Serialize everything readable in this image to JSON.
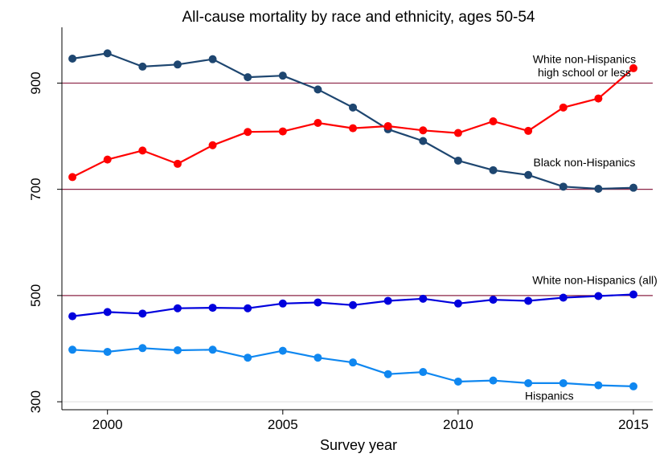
{
  "chart_data": {
    "type": "line",
    "title": "All-cause mortality by race and ethnicity, ages 50-54",
    "xlabel": "Survey year",
    "ylabel": "",
    "xlim": [
      1998.7,
      2015.55
    ],
    "ylim": [
      285,
      1005
    ],
    "x_ticks": [
      2000,
      2005,
      2010,
      2015
    ],
    "y_ticks": [
      300,
      500,
      700,
      900
    ],
    "reference_lines": [
      {
        "y": 300,
        "color": "#e0e0e0"
      },
      {
        "y": 500,
        "color": "#8b2346"
      },
      {
        "y": 700,
        "color": "#8b2346"
      },
      {
        "y": 900,
        "color": "#8b2346"
      }
    ],
    "x": [
      1999,
      2000,
      2001,
      2002,
      2003,
      2004,
      2005,
      2006,
      2007,
      2008,
      2009,
      2010,
      2011,
      2012,
      2013,
      2014,
      2015
    ],
    "series": [
      {
        "key": "black",
        "color": "#1e4670",
        "values": [
          946,
          956,
          931,
          935,
          945,
          911,
          914,
          888,
          854,
          813,
          791,
          754,
          736,
          727,
          705,
          701,
          703
        ]
      },
      {
        "key": "white_hs",
        "color": "#ff0000",
        "values": [
          723,
          756,
          773,
          748,
          783,
          808,
          809,
          825,
          815,
          819,
          811,
          806,
          828,
          810,
          854,
          871,
          928
        ]
      },
      {
        "key": "white_all",
        "color": "#0000dd",
        "values": [
          461,
          469,
          466,
          476,
          477,
          476,
          485,
          487,
          482,
          490,
          494,
          485,
          492,
          490,
          496,
          499,
          502
        ]
      },
      {
        "key": "hispanic",
        "color": "#0f87f0",
        "values": [
          398,
          394,
          401,
          397,
          398,
          383,
          396,
          383,
          374,
          352,
          356,
          338,
          340,
          335,
          335,
          331,
          329
        ]
      }
    ],
    "annotations": [
      {
        "key": "a_white_hs_1",
        "text": "White non-Hispanics",
        "x": 2013.6,
        "y": 938
      },
      {
        "key": "a_white_hs_2",
        "text": "high school or less",
        "x": 2013.6,
        "y": 913
      },
      {
        "key": "a_black",
        "text": "Black non-Hispanics",
        "x": 2013.6,
        "y": 743
      },
      {
        "key": "a_white_all",
        "text": "White non-Hispanics (all)",
        "x": 2013.9,
        "y": 522
      },
      {
        "key": "a_hispanic",
        "text": "Hispanics",
        "x": 2012.6,
        "y": 304
      }
    ]
  }
}
